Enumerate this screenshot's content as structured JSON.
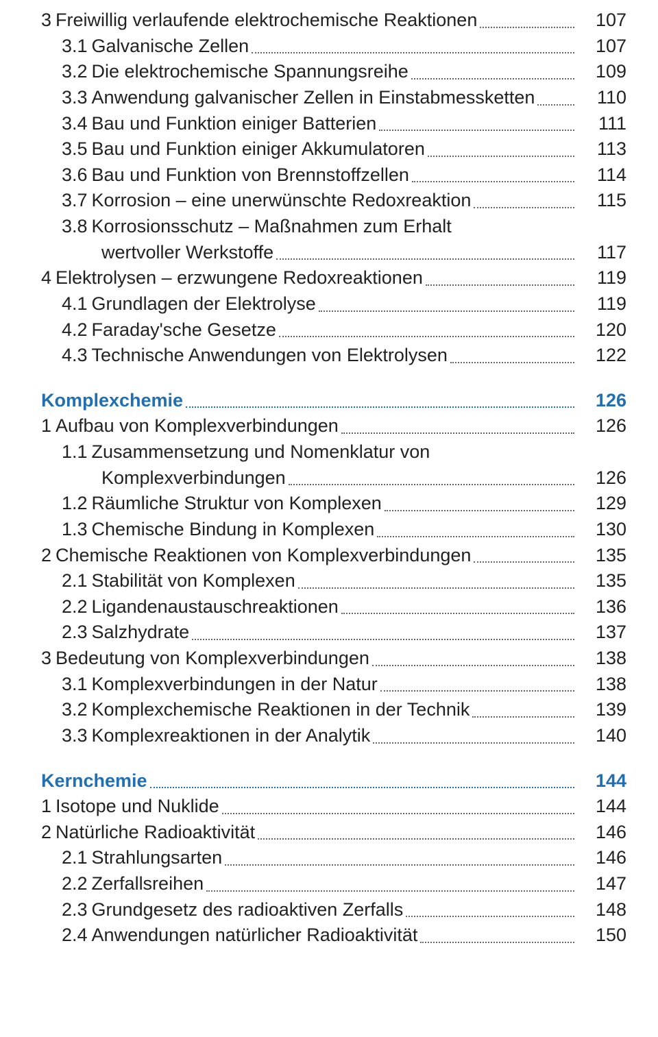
{
  "colors": {
    "heading_text": "#1f6fb2",
    "body_text": "#222222",
    "leader": "#666666",
    "background": "#ffffff"
  },
  "typography": {
    "base_fontsize_pt": 20,
    "heading_weight": 700,
    "body_weight": 400,
    "font_family": "Segoe UI / sans-serif"
  },
  "entries": [
    {
      "level": 0,
      "num": "3",
      "title": "Freiwillig verlaufende elektrochemische Reaktionen",
      "page": "107"
    },
    {
      "level": 1,
      "num": "3.1",
      "title": "Galvanische Zellen",
      "page": "107"
    },
    {
      "level": 1,
      "num": "3.2",
      "title": "Die elektrochemische Spannungsreihe",
      "page": "109"
    },
    {
      "level": 1,
      "num": "3.3",
      "title": "Anwendung galvanischer Zellen in Einstabmessketten",
      "page": "110"
    },
    {
      "level": 1,
      "num": "3.4",
      "title": "Bau und Funktion einiger Batterien",
      "page": "111"
    },
    {
      "level": 1,
      "num": "3.5",
      "title": "Bau und Funktion einiger Akkumulatoren",
      "page": "113"
    },
    {
      "level": 1,
      "num": "3.6",
      "title": "Bau und Funktion von Brennstoffzellen",
      "page": "114"
    },
    {
      "level": 1,
      "num": "3.7",
      "title": "Korrosion – eine unerwünschte Redoxreaktion",
      "page": "115"
    },
    {
      "level": 1,
      "num": "3.8",
      "title_lines": [
        "Korrosionsschutz – Maßnahmen zum Erhalt",
        "wertvoller Werkstoffe"
      ],
      "page": "117"
    },
    {
      "level": 0,
      "num": "4",
      "title": "Elektrolysen – erzwungene Redoxreaktionen",
      "page": "119"
    },
    {
      "level": 1,
      "num": "4.1",
      "title": "Grundlagen der Elektrolyse",
      "page": "119"
    },
    {
      "level": 1,
      "num": "4.2",
      "title": "Faraday'sche Gesetze",
      "page": "120"
    },
    {
      "level": 1,
      "num": "4.3",
      "title": "Technische Anwendungen von Elektrolysen",
      "page": "122"
    },
    {
      "gap": true
    },
    {
      "level": 0,
      "heading": true,
      "num": "",
      "title": "Komplexchemie",
      "page": "126"
    },
    {
      "level": 0,
      "num": "1",
      "title": "Aufbau von Komplexverbindungen",
      "page": "126"
    },
    {
      "level": 1,
      "num": "1.1",
      "title_lines": [
        "Zusammensetzung und Nomenklatur von",
        "Komplexverbindungen"
      ],
      "page": "126"
    },
    {
      "level": 1,
      "num": "1.2",
      "title": "Räumliche Struktur von Komplexen",
      "page": "129"
    },
    {
      "level": 1,
      "num": "1.3",
      "title": "Chemische Bindung in Komplexen",
      "page": "130"
    },
    {
      "level": 0,
      "num": "2",
      "title": "Chemische Reaktionen von Komplexverbindungen",
      "page": "135"
    },
    {
      "level": 1,
      "num": "2.1",
      "title": "Stabilität von Komplexen",
      "page": "135"
    },
    {
      "level": 1,
      "num": "2.2",
      "title": "Ligandenaustauschreaktionen",
      "page": "136"
    },
    {
      "level": 1,
      "num": "2.3",
      "title": "Salzhydrate",
      "page": "137"
    },
    {
      "level": 0,
      "num": "3",
      "title": "Bedeutung von Komplexverbindungen",
      "page": "138"
    },
    {
      "level": 1,
      "num": "3.1",
      "title": "Komplexverbindungen in der Natur",
      "page": "138"
    },
    {
      "level": 1,
      "num": "3.2",
      "title": "Komplexchemische Reaktionen in der Technik",
      "page": "139"
    },
    {
      "level": 1,
      "num": "3.3",
      "title": "Komplexreaktionen in der Analytik",
      "page": "140"
    },
    {
      "gap": true
    },
    {
      "level": 0,
      "heading": true,
      "num": "",
      "title": "Kernchemie",
      "page": "144"
    },
    {
      "level": 0,
      "num": "1",
      "title": "Isotope und Nuklide",
      "page": "144"
    },
    {
      "level": 0,
      "num": "2",
      "title": "Natürliche Radioaktivität",
      "page": "146"
    },
    {
      "level": 1,
      "num": "2.1",
      "title": "Strahlungsarten",
      "page": "146"
    },
    {
      "level": 1,
      "num": "2.2",
      "title": "Zerfallsreihen",
      "page": "147"
    },
    {
      "level": 1,
      "num": "2.3",
      "title": "Grundgesetz des radioaktiven Zerfalls",
      "page": "148"
    },
    {
      "level": 1,
      "num": "2.4",
      "title": "Anwendungen natürlicher Radioaktivität",
      "page": "150"
    }
  ]
}
